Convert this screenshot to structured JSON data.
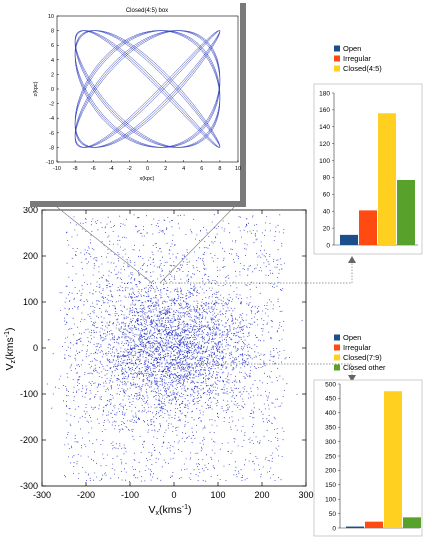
{
  "colors": {
    "scatter": "#2430c8",
    "orbit": "#3040c0",
    "open": "#1a4f8c",
    "irregular": "#ff4a12",
    "closed": "#ffd020",
    "closed_other": "#58a12a",
    "guide": "#777777",
    "frame_shadow": "#7a7a7a"
  },
  "chart_data": [
    {
      "id": "velocity-scatter",
      "type": "scatter",
      "xlabel": "V",
      "xlabel_sub": "x",
      "xlabel_unit": "(kms",
      "xlabel_unit_sup": "-1",
      "xlabel_close": ")",
      "ylabel": "V",
      "ylabel_sub": "z",
      "ylabel_unit": "(kms",
      "ylabel_unit_sup": "-1",
      "ylabel_close": ")",
      "xlim": [
        -300,
        300
      ],
      "ylim": [
        -300,
        300
      ],
      "xticks": [
        "-300",
        "-200",
        "-100",
        "0",
        "100",
        "200",
        "300"
      ],
      "yticks": [
        "300",
        "200",
        "100",
        "0",
        "-100",
        "-200",
        "-300"
      ]
    },
    {
      "id": "orbit-inset",
      "type": "line",
      "title": "Closed(4:5) box",
      "xlabel": "x(kpc)",
      "ylabel": "z(kpc)",
      "xlim": [
        -10,
        10
      ],
      "ylim": [
        -10,
        10
      ],
      "xticks": [
        "-10",
        "-8",
        "-6",
        "-4",
        "-2",
        "0",
        "2",
        "4",
        "6",
        "8",
        "10"
      ],
      "yticks": [
        "10",
        "8",
        "6",
        "4",
        "2",
        "0",
        "-2",
        "-4",
        "-6",
        "-8",
        "-10"
      ],
      "orbit": {
        "ratio": "4:5",
        "amplitude_x": 8,
        "amplitude_z": 8
      }
    },
    {
      "id": "bar-upper",
      "type": "bar",
      "categories": [
        "Open",
        "Irregular",
        "Closed(4:5)",
        "Closed other"
      ],
      "values": [
        12,
        41,
        156,
        77
      ],
      "legend": [
        "Open",
        "Irregular",
        "Closed(4:5)"
      ],
      "ylim": [
        0,
        180
      ],
      "yticks": [
        "0",
        "20",
        "40",
        "60",
        "80",
        "100",
        "120",
        "140",
        "160",
        "180"
      ]
    },
    {
      "id": "bar-lower",
      "type": "bar",
      "categories": [
        "Open",
        "Irregular",
        "Closed(7:9)",
        "Closed other"
      ],
      "values": [
        5,
        22,
        475,
        37
      ],
      "legend": [
        "Open",
        "Irregular",
        "Closed(7:9)",
        "Closed other"
      ],
      "ylim": [
        0,
        500
      ],
      "yticks": [
        "0",
        "50",
        "100",
        "150",
        "200",
        "250",
        "300",
        "350",
        "400",
        "450",
        "500"
      ]
    }
  ]
}
